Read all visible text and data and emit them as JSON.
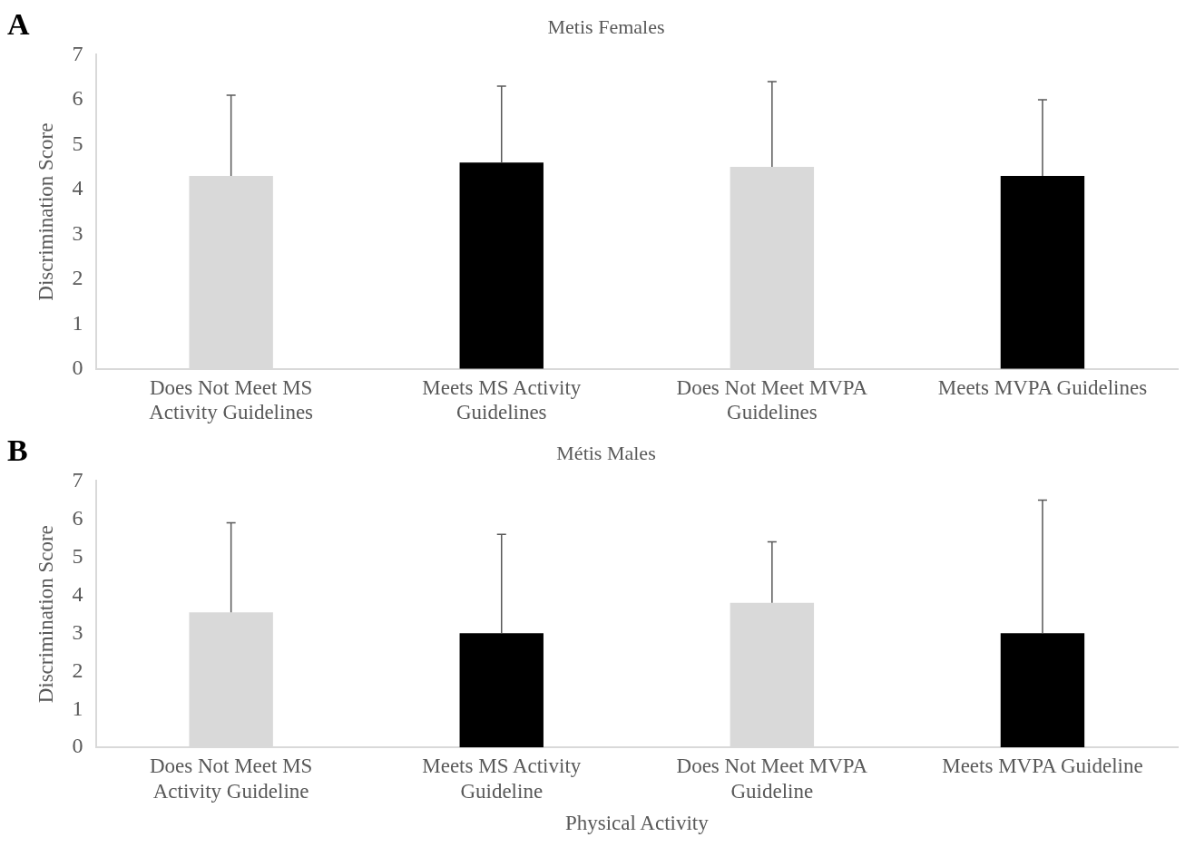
{
  "chart_data": [
    {
      "type": "bar",
      "title": "Metis Females",
      "ylabel": "Discrimination Score",
      "annotations": [
        "A"
      ],
      "categories": [
        "Does Not Meet MS Activity Guidelines",
        "Meets MS Activity Guidelines",
        "Does Not Meet MVPA Guidelines",
        "Meets MVPA Guidelines"
      ],
      "values": [
        4.3,
        4.6,
        4.5,
        4.3
      ],
      "colors": [
        "#d9d9d9",
        "#000000",
        "#d9d9d9",
        "#000000"
      ],
      "errors": [
        [
          4.3,
          6.1
        ],
        [
          4.6,
          6.3
        ],
        [
          4.5,
          6.4
        ],
        [
          4.3,
          6.0
        ]
      ],
      "ylim": [
        0,
        7
      ],
      "yticks": [
        0,
        1,
        2,
        3,
        4,
        5,
        6,
        7
      ],
      "grid": false,
      "legend": false
    },
    {
      "type": "bar",
      "title": "Métis Males",
      "ylabel": "Discrimination Score",
      "xlabel": "Physical Activity",
      "annotations": [
        "B"
      ],
      "categories": [
        "Does Not Meet MS Activity Guideline",
        "Meets MS Activity Guideline",
        "Does Not Meet MVPA Guideline",
        "Meets MVPA Guideline"
      ],
      "values": [
        3.55,
        3.0,
        3.8,
        3.0
      ],
      "colors": [
        "#d9d9d9",
        "#000000",
        "#d9d9d9",
        "#000000"
      ],
      "errors": [
        [
          3.55,
          5.9
        ],
        [
          3.0,
          5.6
        ],
        [
          3.8,
          5.4
        ],
        [
          3.0,
          6.5
        ]
      ],
      "ylim": [
        0,
        7
      ],
      "yticks": [
        0,
        1,
        2,
        3,
        4,
        5,
        6,
        7
      ],
      "grid": false,
      "legend": false
    }
  ]
}
